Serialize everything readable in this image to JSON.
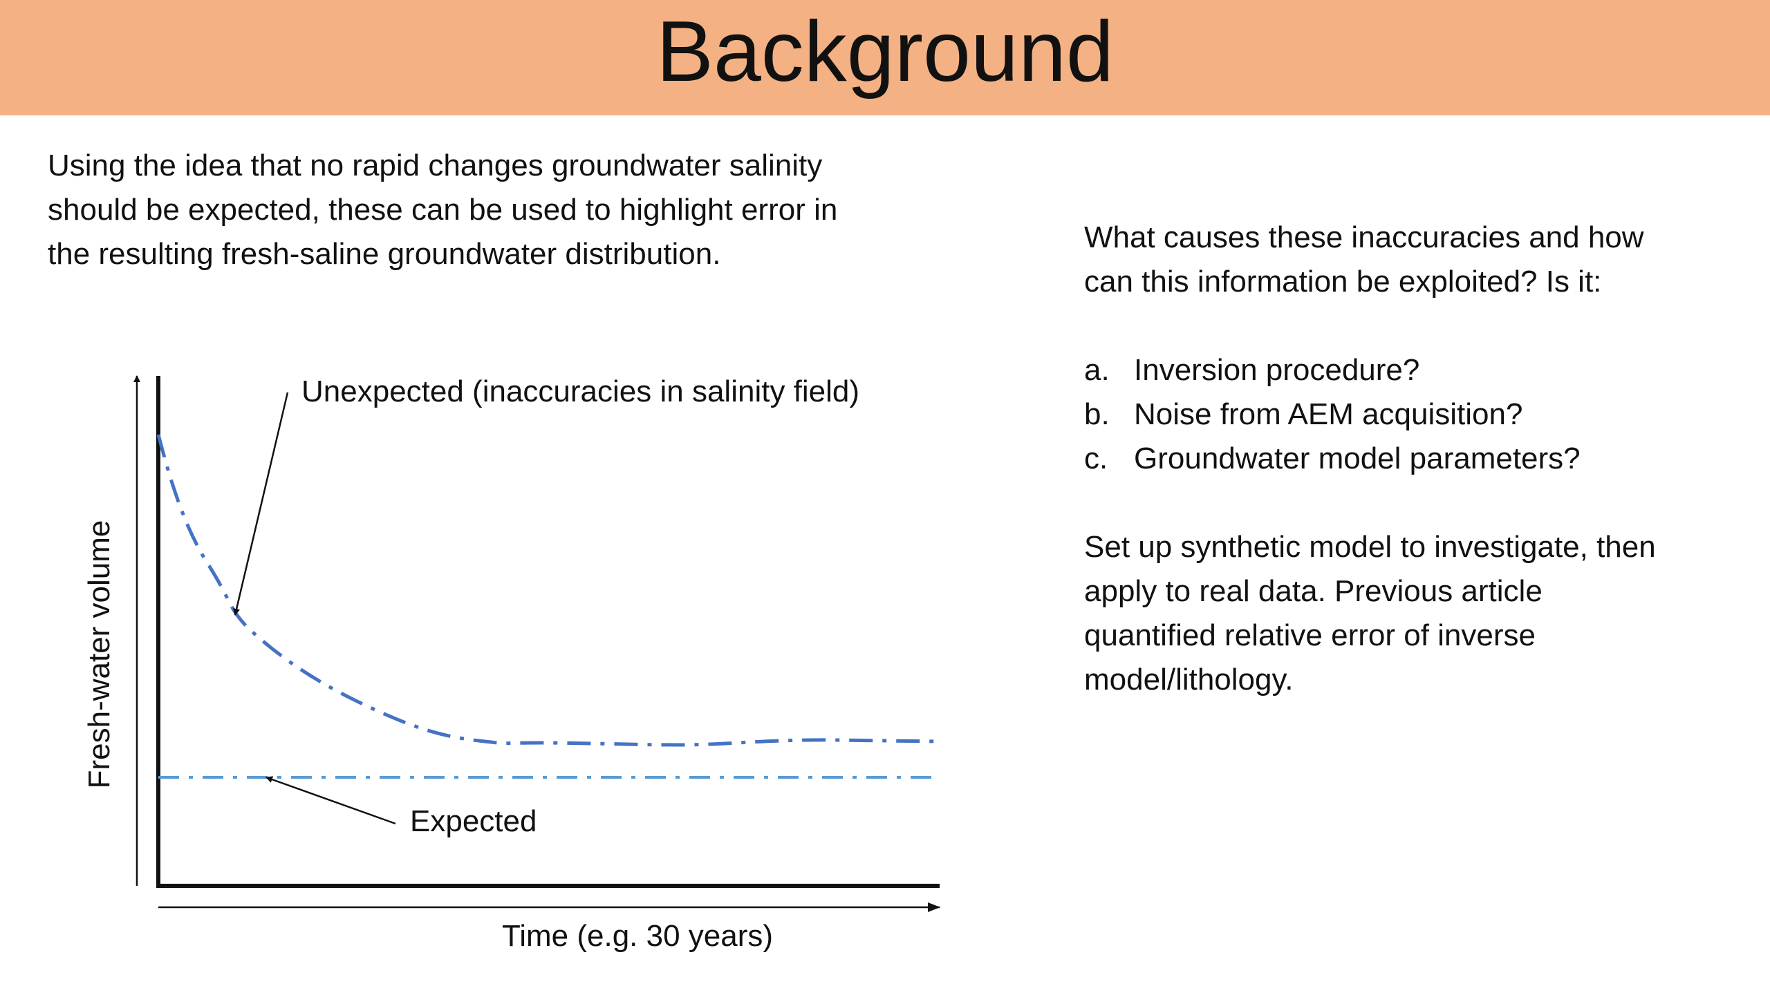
{
  "slide": {
    "title": "Background",
    "header_color": "#F4B183",
    "intro_lines": [
      "Using the idea that no rapid changes groundwater salinity",
      "should be expected, these can be used to highlight error in",
      "the resulting fresh-saline groundwater distribution."
    ],
    "question_lines": [
      "What causes these inaccuracies and how",
      "can this information be exploited? Is it:"
    ],
    "options": [
      {
        "marker": "a.",
        "text": "Inversion procedure?"
      },
      {
        "marker": "b.",
        "text": "Noise from AEM acquisition?"
      },
      {
        "marker": "c.",
        "text": "Groundwater model parameters?"
      }
    ],
    "plan_lines": [
      "Set up synthetic model to investigate, then",
      "apply to real data. Previous article",
      "quantified relative error of inverse",
      "model/lithology."
    ]
  },
  "chart_data": {
    "type": "line",
    "title": "",
    "xlabel": "Time (e.g. 30 years)",
    "ylabel": "Fresh-water volume",
    "grid": false,
    "series": [
      {
        "name": "Unexpected (inaccuracies in salinity field)",
        "shape": "rapid decline then plateau",
        "color": "#4472C4"
      },
      {
        "name": "Expected",
        "shape": "constant",
        "color": "#5B9BD5"
      }
    ],
    "annotations": [
      "Unexpected (inaccuracies in salinity field)",
      "Expected"
    ]
  }
}
